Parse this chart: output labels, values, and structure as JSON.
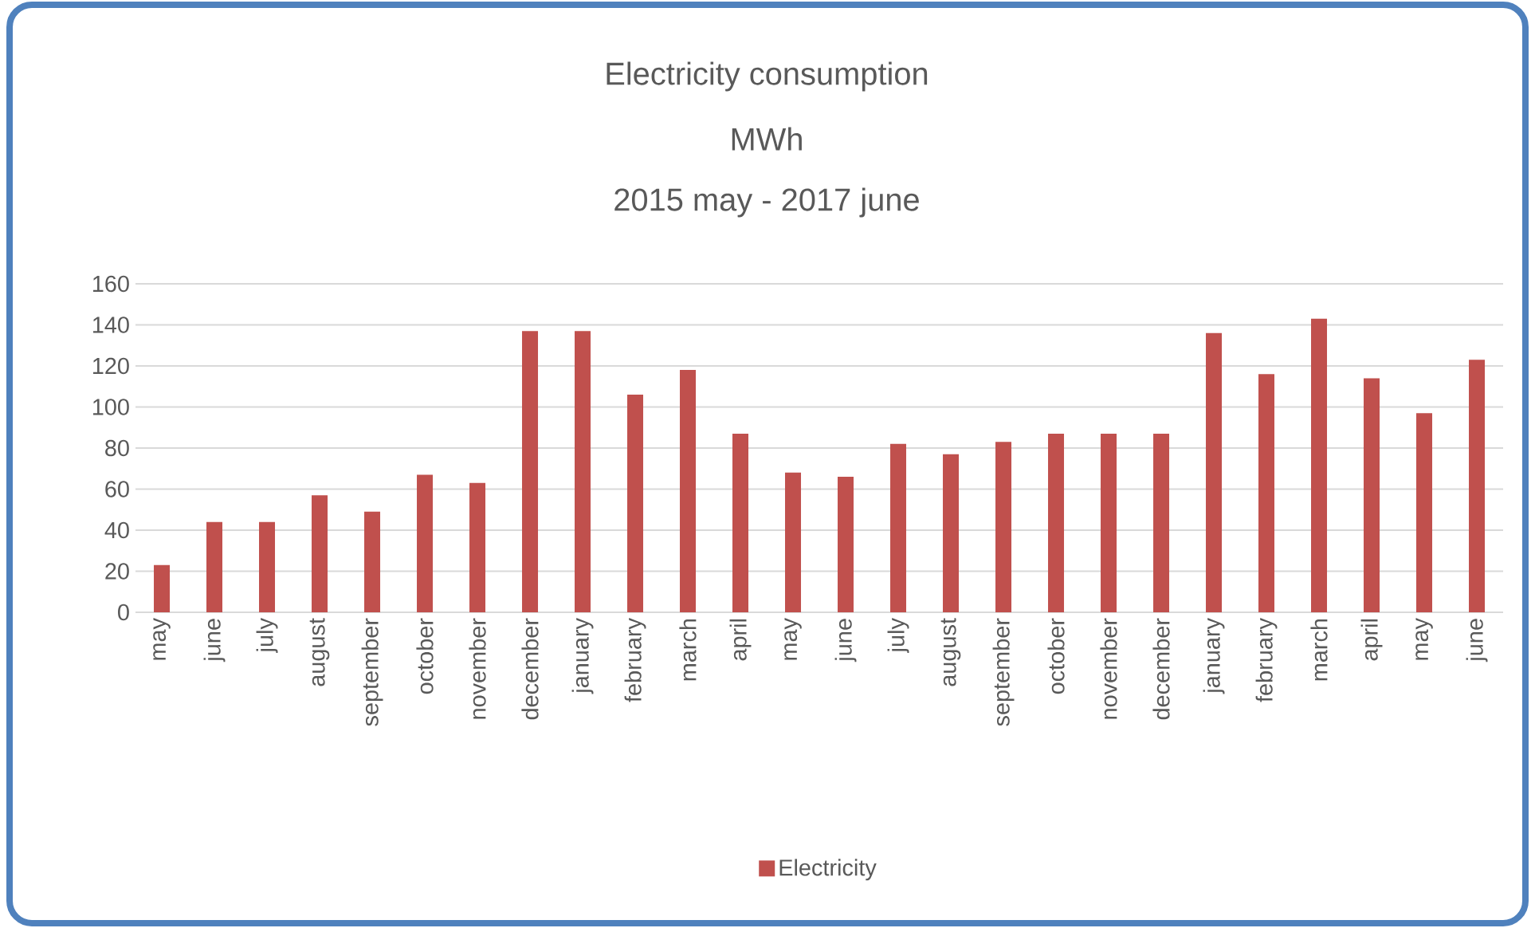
{
  "chart_data": {
    "type": "bar",
    "title": "Electricity consumption",
    "subtitle": "MWh",
    "annotations": [
      "2015 may - 2017 june"
    ],
    "categories": [
      "may",
      "june",
      "july",
      "august",
      "september",
      "october",
      "november",
      "december",
      "january",
      "february",
      "march",
      "april",
      "may",
      "june",
      "july",
      "august",
      "september",
      "october",
      "november",
      "december",
      "january",
      "february",
      "march",
      "april",
      "may",
      "june"
    ],
    "series": [
      {
        "name": "Electricity",
        "color": "#c0504d",
        "values": [
          23,
          44,
          44,
          57,
          49,
          67,
          63,
          137,
          137,
          106,
          118,
          87,
          68,
          66,
          82,
          77,
          83,
          87,
          87,
          87,
          136,
          116,
          143,
          114,
          97,
          123
        ]
      }
    ],
    "ylim": [
      0,
      160
    ],
    "yticks": [
      0,
      20,
      40,
      60,
      80,
      100,
      120,
      140,
      160
    ],
    "grid": "y",
    "legend": "bottom"
  }
}
